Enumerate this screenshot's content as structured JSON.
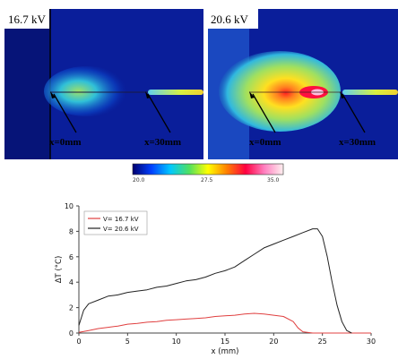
{
  "thermal_images": [
    {
      "label": "16.7 kV",
      "markers": [
        "x=0mm",
        "x=30mm"
      ]
    },
    {
      "label": "20.6 kV",
      "markers": [
        "x=0mm",
        "x=30mm"
      ]
    }
  ],
  "colorbar": {
    "ticks": [
      "20.0",
      "27.5",
      "35.0"
    ],
    "colors": [
      "#00006e",
      "#0040ff",
      "#00c8ff",
      "#50e060",
      "#ffff00",
      "#ff8000",
      "#ff0040",
      "#ff80c0",
      "#fff0f0"
    ]
  },
  "chart_data": {
    "type": "line",
    "xlabel": "x (mm)",
    "ylabel": "ΔT (°C)",
    "xlim": [
      0,
      30
    ],
    "ylim": [
      0,
      10
    ],
    "xticks": [
      0,
      5,
      10,
      15,
      20,
      25,
      30
    ],
    "yticks": [
      0,
      2,
      4,
      6,
      8,
      10
    ],
    "legend_position": "top-left",
    "series": [
      {
        "name": "V= 16.7 kV",
        "color": "#e04040",
        "x": [
          0,
          1,
          2,
          3,
          4,
          5,
          6,
          7,
          8,
          9,
          10,
          11,
          12,
          13,
          14,
          15,
          16,
          17,
          18,
          19,
          20,
          21,
          22,
          22.5,
          23,
          24,
          25,
          26,
          27,
          28,
          29,
          30
        ],
        "y": [
          0.05,
          0.2,
          0.35,
          0.45,
          0.55,
          0.7,
          0.75,
          0.85,
          0.9,
          1.0,
          1.05,
          1.1,
          1.15,
          1.2,
          1.3,
          1.35,
          1.4,
          1.5,
          1.55,
          1.5,
          1.4,
          1.3,
          0.9,
          0.4,
          0.1,
          0.0,
          0.0,
          0.0,
          0.0,
          0.0,
          0.0,
          0.0
        ]
      },
      {
        "name": "V= 20.6 kV",
        "color": "#222222",
        "x": [
          0,
          0.5,
          1,
          2,
          3,
          4,
          5,
          6,
          7,
          8,
          9,
          10,
          11,
          12,
          13,
          14,
          15,
          16,
          17,
          18,
          19,
          20,
          21,
          22,
          23,
          24,
          24.5,
          25,
          25.5,
          26,
          26.5,
          27,
          27.5,
          28
        ],
        "y": [
          0.6,
          1.8,
          2.3,
          2.6,
          2.9,
          3.0,
          3.2,
          3.3,
          3.4,
          3.6,
          3.7,
          3.9,
          4.1,
          4.2,
          4.4,
          4.7,
          4.9,
          5.2,
          5.7,
          6.2,
          6.7,
          7.0,
          7.3,
          7.6,
          7.9,
          8.2,
          8.2,
          7.6,
          6.0,
          4.0,
          2.2,
          0.9,
          0.2,
          0.0
        ]
      }
    ]
  }
}
